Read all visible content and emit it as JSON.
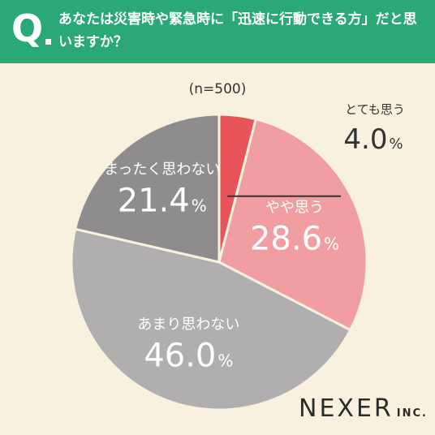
{
  "header": {
    "q_letter": "Q",
    "question": "あなたは災害時や緊急時に「迅速に行動できる方」だと思いますか？"
  },
  "n_label": "(n=500)",
  "brand": {
    "name": "NEXER",
    "suffix": "INC."
  },
  "colors": {
    "header_bg": "#2aa876",
    "background": "#f7f1dd",
    "slice_1": "#e8545a",
    "slice_2": "#f09ea1",
    "slice_3": "#b0aeaf",
    "slice_4": "#8f8c8d"
  },
  "chart_data": {
    "type": "pie",
    "title": "",
    "unit": "%",
    "slices": [
      {
        "label": "とても思う",
        "value": 4.0,
        "value_text": "4.0",
        "color": "#e8545a"
      },
      {
        "label": "やや思う",
        "value": 28.6,
        "value_text": "28.6",
        "color": "#f09ea1"
      },
      {
        "label": "あまり思わない",
        "value": 46.0,
        "value_text": "46.0",
        "color": "#b0aeaf"
      },
      {
        "label": "まったく思わない",
        "value": 21.4,
        "value_text": "21.4",
        "color": "#8f8c8d"
      }
    ]
  }
}
